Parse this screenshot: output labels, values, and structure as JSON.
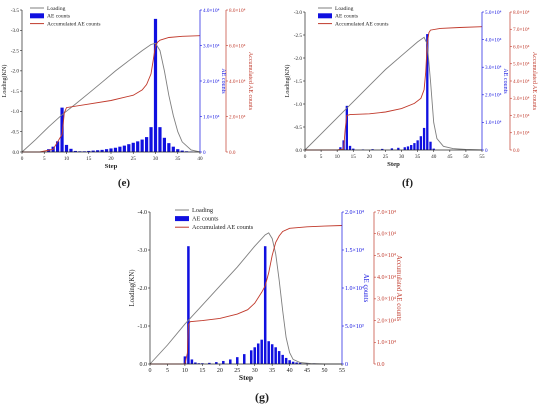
{
  "figure": {
    "panels": [
      "(e)",
      "(f)",
      "(g)"
    ]
  },
  "chart_data": [
    {
      "panel_label": "(e)",
      "type": "bar",
      "xlabel": "Step",
      "ylabel_left": "Loading(KN)",
      "ylabel_right_ae": "AE counts",
      "ylabel_right_acc": "Accumulated AE counts",
      "xlim": [
        0,
        40
      ],
      "x_ticks": [
        "0",
        "5",
        "10",
        "15",
        "20",
        "25",
        "30",
        "35",
        "40"
      ],
      "load_lim": [
        0,
        -3.5
      ],
      "load_ticks": [
        "0.0",
        "-0.5",
        "-1.0",
        "-1.5",
        "-2.0",
        "-2.5",
        "-3.0",
        "-3.5"
      ],
      "ae_lim": [
        0,
        40000
      ],
      "ae_ticks": [
        "0",
        "1.0×10⁴",
        "2.0×10⁴",
        "3.0×10⁴",
        "4.0×10⁴"
      ],
      "acc_lim": [
        0,
        80000
      ],
      "acc_ticks": [
        "0.0",
        "2.0×10⁴",
        "4.0×10⁴",
        "6.0×10⁴",
        "8.0×10⁴"
      ],
      "legend": [
        "Loading",
        "AE counts",
        "Accumulated AE counts"
      ],
      "loading": {
        "x": [
          0,
          3,
          6,
          9,
          12,
          15,
          18,
          21,
          24,
          27,
          29,
          30,
          31,
          32,
          33,
          34,
          35,
          36,
          38,
          40
        ],
        "y": [
          0,
          -0.3,
          -0.62,
          -0.92,
          -1.18,
          -1.45,
          -1.72,
          -2.0,
          -2.25,
          -2.5,
          -2.65,
          -2.68,
          -2.5,
          -2.0,
          -1.4,
          -0.9,
          -0.5,
          -0.25,
          -0.05,
          0
        ]
      },
      "ae_counts": {
        "x": [
          6,
          7,
          8,
          9,
          10,
          11,
          12,
          13,
          14,
          15,
          16,
          17,
          18,
          19,
          20,
          21,
          22,
          23,
          24,
          25,
          26,
          27,
          28,
          29,
          30,
          31,
          32,
          33,
          34,
          35,
          36,
          37,
          38
        ],
        "y": [
          800,
          1500,
          3000,
          12500,
          2000,
          900,
          300,
          200,
          200,
          300,
          400,
          500,
          600,
          800,
          1000,
          1200,
          1500,
          1800,
          2200,
          2600,
          3000,
          3500,
          4200,
          7000,
          37500,
          7000,
          4000,
          2500,
          1500,
          800,
          400,
          200,
          100
        ]
      },
      "accumulated": {
        "x": [
          0,
          4,
          7,
          9,
          9.5,
          10,
          15,
          20,
          25,
          27,
          28,
          29,
          29.5,
          30,
          30.5,
          31,
          33,
          36,
          40
        ],
        "y": [
          0,
          0,
          1500,
          10000,
          22000,
          25000,
          27000,
          29000,
          32000,
          35000,
          38000,
          44000,
          52000,
          60000,
          62000,
          63000,
          64500,
          65200,
          65500
        ]
      }
    },
    {
      "panel_label": "(f)",
      "type": "bar",
      "xlabel": "Step",
      "ylabel_left": "Loading(KN)",
      "ylabel_right_ae": "AE counts",
      "ylabel_right_acc": "Accumulated AE counts",
      "xlim": [
        0,
        55
      ],
      "x_ticks": [
        "0",
        "5",
        "10",
        "15",
        "20",
        "25",
        "30",
        "35",
        "40",
        "45",
        "50",
        "55"
      ],
      "load_lim": [
        0,
        -3.0
      ],
      "load_ticks": [
        "0.0",
        "-0.5",
        "-1.0",
        "-1.5",
        "-2.0",
        "-2.5",
        "-3.0"
      ],
      "ae_lim": [
        0,
        50000
      ],
      "ae_ticks": [
        "0",
        "1.0×10⁴",
        "2.0×10⁴",
        "3.0×10⁴",
        "4.0×10⁴",
        "5.0×10⁴"
      ],
      "acc_lim": [
        0,
        80000
      ],
      "acc_ticks": [
        "0.0",
        "1.0×10⁴",
        "2.0×10⁴",
        "3.0×10⁴",
        "4.0×10⁴",
        "5.0×10⁴",
        "6.0×10⁴",
        "7.0×10⁴",
        "8.0×10⁴"
      ],
      "legend": [
        "Loading",
        "AE counts",
        "Accumulated AE counts"
      ],
      "loading": {
        "x": [
          0,
          5,
          10,
          15,
          20,
          25,
          30,
          35,
          37,
          38,
          39,
          40,
          41,
          43,
          46,
          50,
          55
        ],
        "y": [
          0,
          -0.35,
          -0.7,
          -1.05,
          -1.4,
          -1.75,
          -2.05,
          -2.35,
          -2.45,
          -2.3,
          -1.5,
          -0.6,
          -0.25,
          -0.08,
          -0.03,
          -0.01,
          0
        ]
      },
      "ae_counts": {
        "x": [
          11,
          12,
          13,
          14,
          15,
          18,
          21,
          24,
          27,
          29,
          31,
          32,
          33,
          34,
          35,
          36,
          37,
          38,
          39,
          40
        ],
        "y": [
          1000,
          3500,
          16000,
          1500,
          500,
          200,
          300,
          400,
          600,
          800,
          1000,
          1300,
          1800,
          2500,
          3500,
          5000,
          8000,
          42000,
          3000,
          500
        ]
      },
      "accumulated": {
        "x": [
          0,
          10,
          12,
          12.5,
          13,
          14,
          20,
          25,
          30,
          34,
          36,
          37,
          37.5,
          38,
          38.5,
          39,
          42,
          48,
          55
        ],
        "y": [
          0,
          0,
          500,
          12000,
          20000,
          20500,
          21000,
          22000,
          24000,
          27000,
          30000,
          35000,
          45000,
          62000,
          68000,
          69500,
          70500,
          71000,
          71500
        ]
      }
    },
    {
      "panel_label": "(g)",
      "type": "bar",
      "xlabel": "Step",
      "ylabel_left": "Loading(KN)",
      "ylabel_right_ae": "AE counts",
      "ylabel_right_acc": "Accumulated AE counts",
      "xlim": [
        0,
        55
      ],
      "x_ticks": [
        "0",
        "5",
        "10",
        "15",
        "20",
        "25",
        "30",
        "35",
        "40",
        "45",
        "50",
        "55"
      ],
      "load_lim": [
        0,
        -4.0
      ],
      "load_ticks": [
        "0.0",
        "-1.0",
        "-2.0",
        "-3.0",
        "-4.0"
      ],
      "ae_lim": [
        0,
        20000
      ],
      "ae_ticks": [
        "0",
        "5.0×10³",
        "1.0×10⁴",
        "1.5×10⁴",
        "2.0×10⁴"
      ],
      "acc_lim": [
        0,
        70000
      ],
      "acc_ticks": [
        "0.0",
        "1.0×10⁴",
        "2.0×10⁴",
        "3.0×10⁴",
        "4.0×10⁴",
        "5.0×10⁴",
        "6.0×10⁴",
        "7.0×10⁴"
      ],
      "legend": [
        "Loading",
        "AE counts",
        "Accumulated AE counts"
      ],
      "loading": {
        "x": [
          0,
          5,
          10,
          15,
          20,
          25,
          30,
          33,
          34,
          35,
          36,
          37,
          38,
          39,
          40,
          41,
          43,
          46,
          50,
          55
        ],
        "y": [
          0,
          -0.5,
          -1.05,
          -1.55,
          -2.05,
          -2.55,
          -3.1,
          -3.4,
          -3.45,
          -3.3,
          -2.9,
          -2.2,
          -1.4,
          -0.7,
          -0.3,
          -0.12,
          -0.04,
          -0.01,
          0,
          0
        ]
      },
      "ae_counts": {
        "x": [
          10,
          11,
          12,
          13,
          14,
          15,
          17,
          19,
          21,
          23,
          25,
          27,
          29,
          30,
          31,
          32,
          33,
          34,
          35,
          36,
          37,
          38,
          39,
          40,
          41,
          42,
          43,
          45,
          47,
          50,
          52,
          54
        ],
        "y": [
          1000,
          15500,
          600,
          200,
          100,
          100,
          150,
          250,
          400,
          600,
          900,
          1300,
          1800,
          2200,
          2700,
          3200,
          15500,
          3000,
          2600,
          2200,
          1700,
          1200,
          800,
          500,
          300,
          200,
          150,
          100,
          80,
          60,
          50,
          40
        ]
      },
      "accumulated": {
        "x": [
          0,
          10,
          10.7,
          11,
          11.5,
          15,
          20,
          25,
          28,
          30,
          32,
          33,
          34,
          35,
          36,
          37,
          38,
          40,
          45,
          50,
          55
        ],
        "y": [
          0,
          0,
          5000,
          18000,
          19500,
          20000,
          21000,
          23000,
          25000,
          28000,
          33000,
          36000,
          42000,
          50000,
          56000,
          59000,
          61000,
          62500,
          63200,
          63500,
          63800
        ]
      }
    }
  ]
}
